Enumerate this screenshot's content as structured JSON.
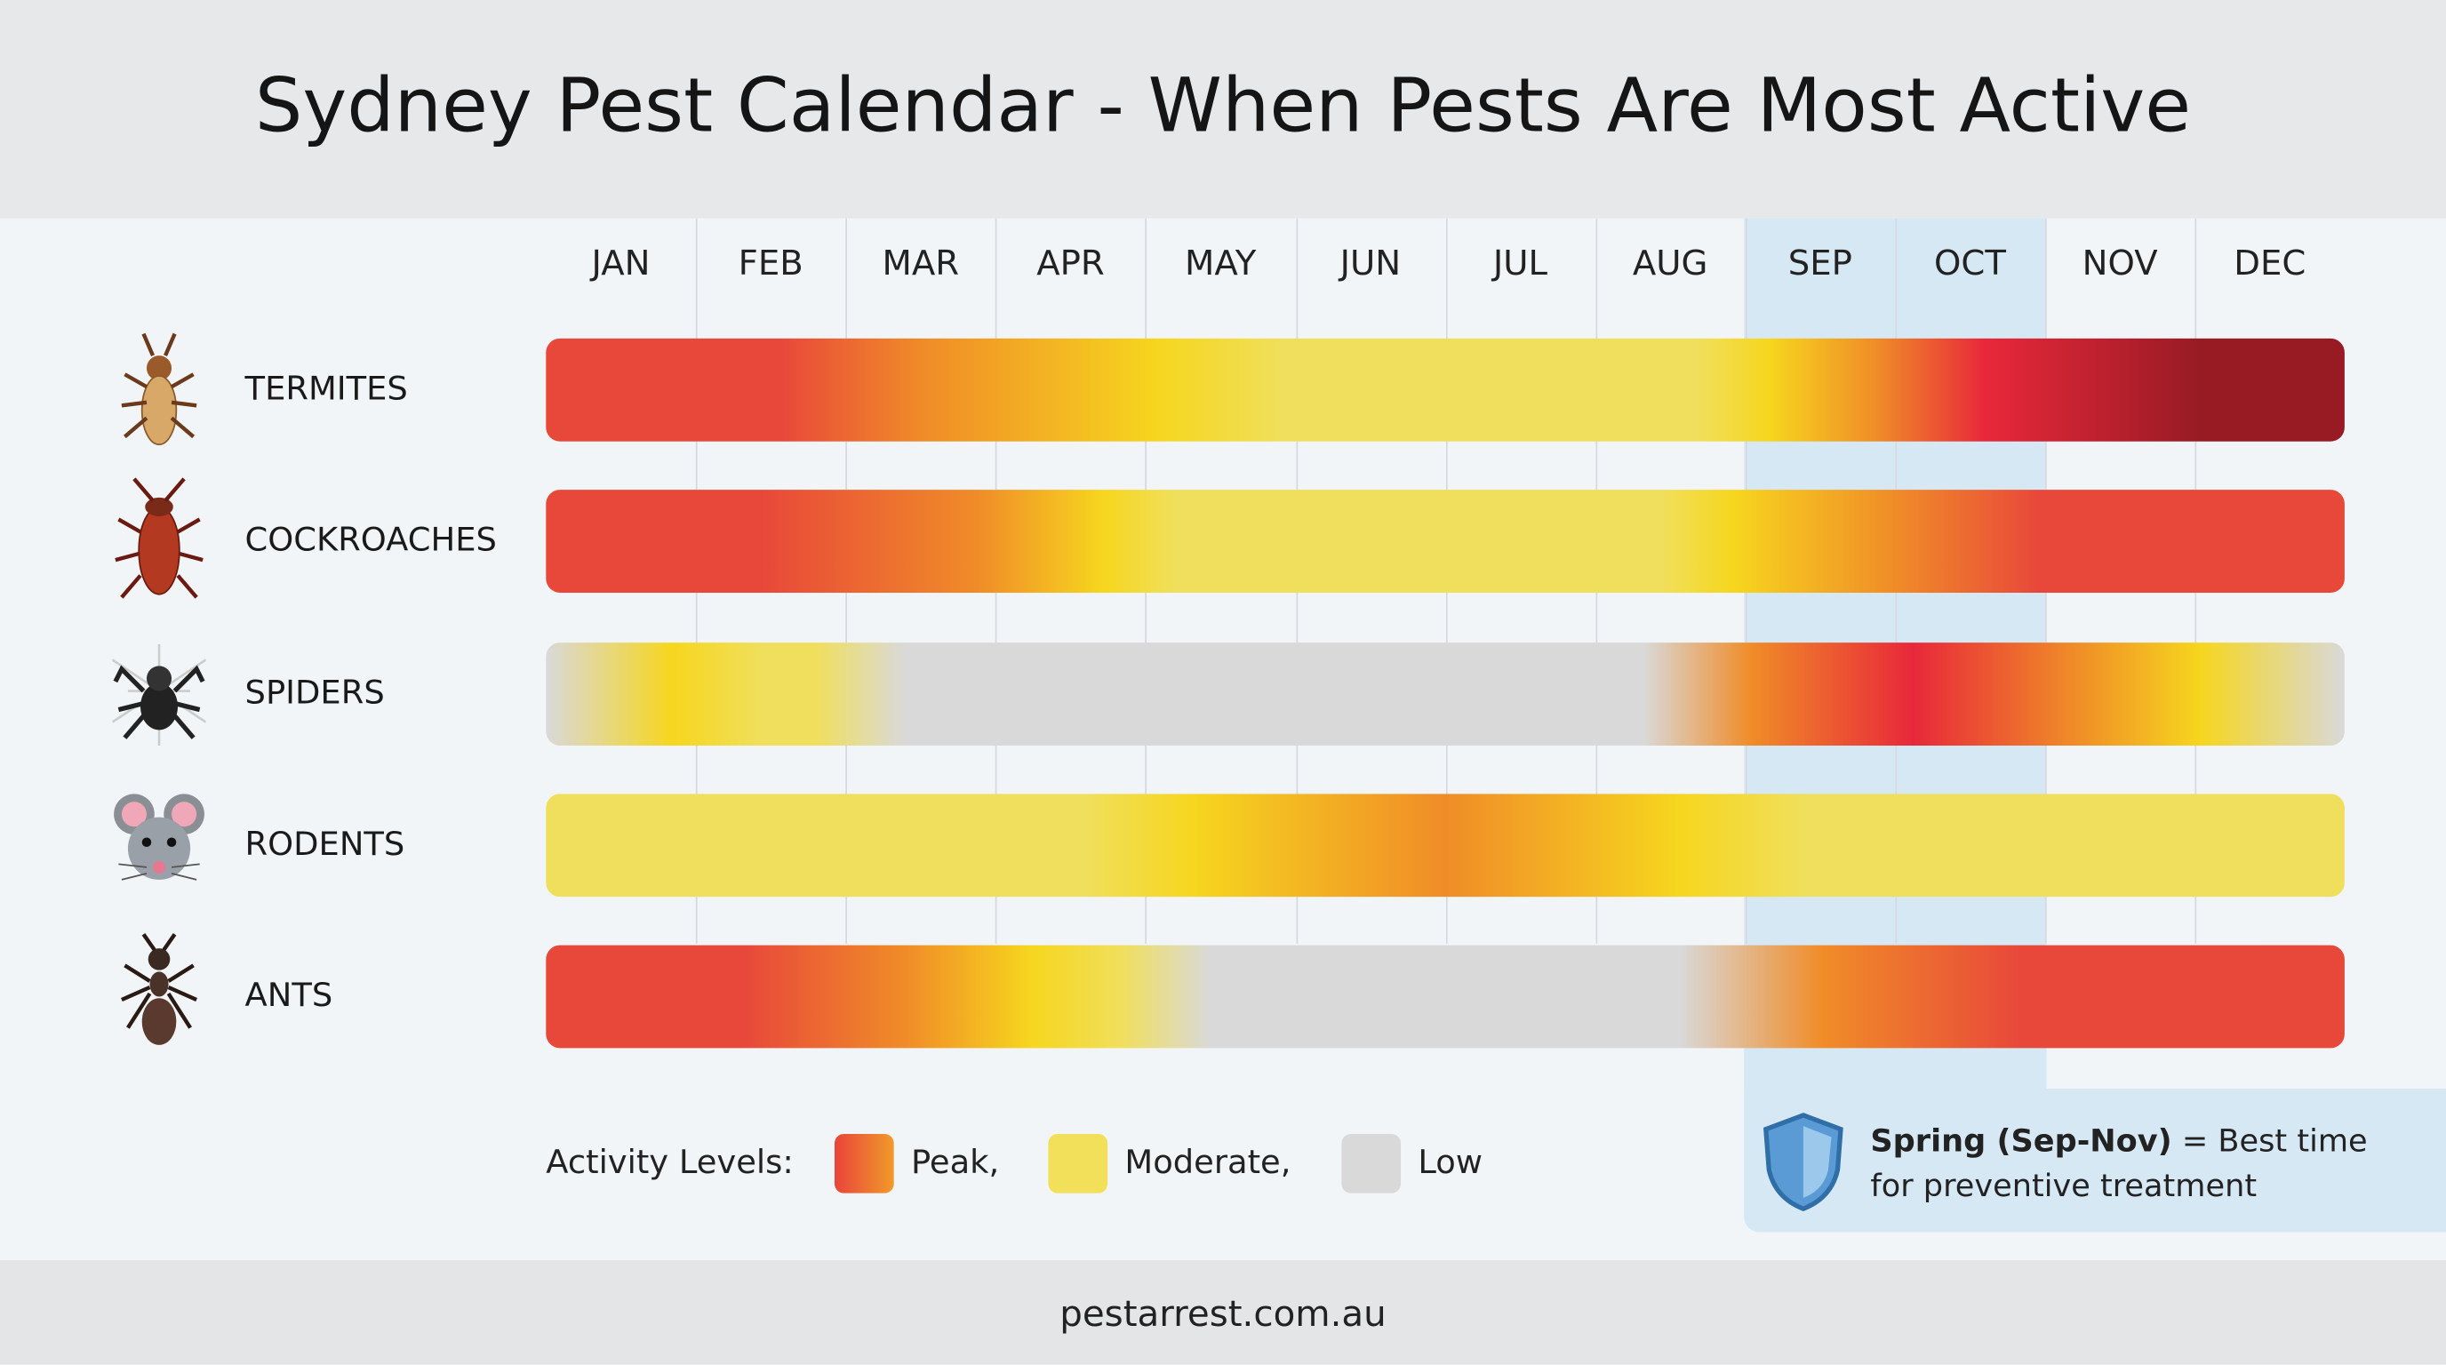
{
  "header": {
    "title": "Sydney Pest Calendar - When Pests Are Most Active"
  },
  "months": [
    "JAN",
    "FEB",
    "MAR",
    "APR",
    "MAY",
    "JUN",
    "JUL",
    "AUG",
    "SEP",
    "OCT",
    "NOV",
    "DEC"
  ],
  "pests": [
    "TERMITES",
    "COCKROACHES",
    "SPIDERS",
    "RODENTS",
    "ANTS"
  ],
  "legend": {
    "title": "Activity Levels:",
    "items": [
      "Peak,",
      "Moderate,",
      "Low"
    ]
  },
  "note": {
    "emphasis": "Spring (Sep-Nov)",
    "line1": "= Best time",
    "line2": "for preventive treatment"
  },
  "footer": {
    "url": "pestarrest.com.au"
  }
}
